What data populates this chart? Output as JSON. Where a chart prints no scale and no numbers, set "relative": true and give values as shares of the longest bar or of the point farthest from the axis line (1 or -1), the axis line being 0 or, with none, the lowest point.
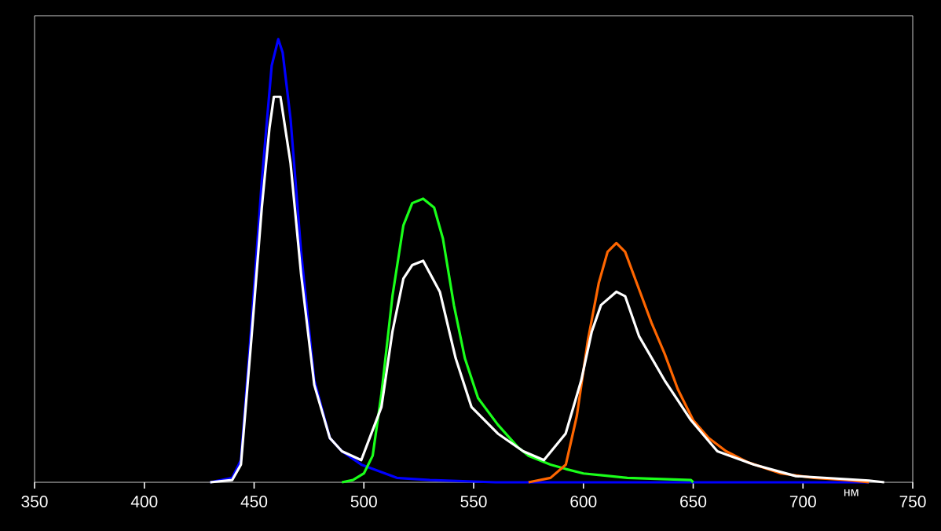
{
  "chart_data": {
    "type": "line",
    "relative": true,
    "xlabel": "нм",
    "xlim": [
      350,
      750
    ],
    "xticks": [
      350,
      400,
      450,
      500,
      550,
      600,
      650,
      700,
      750
    ],
    "marker": "none",
    "line_style": "solid",
    "series": [
      {
        "color": "#0000ff",
        "x": [
          430,
          440,
          444,
          448.7,
          453.5,
          458,
          461,
          463,
          466.6,
          471.4,
          477.4,
          484.5,
          490,
          498.8,
          515,
          530,
          560,
          650,
          730
        ],
        "values": [
          0,
          0.01,
          0.05,
          0.35,
          0.68,
          0.94,
          1.0,
          0.97,
          0.82,
          0.52,
          0.23,
          0.1,
          0.07,
          0.04,
          0.01,
          0.005,
          0,
          0,
          0
        ]
      },
      {
        "color": "#1aff1a",
        "x": [
          490,
          495,
          500,
          504,
          508,
          513,
          518,
          522,
          527,
          532,
          536,
          541,
          546,
          552,
          561,
          570,
          575,
          585,
          592,
          600,
          620,
          649,
          650
        ],
        "values": [
          0,
          0.005,
          0.02,
          0.06,
          0.2,
          0.42,
          0.58,
          0.63,
          0.64,
          0.62,
          0.55,
          0.4,
          0.28,
          0.19,
          0.13,
          0.08,
          0.06,
          0.04,
          0.03,
          0.02,
          0.01,
          0.005,
          0
        ]
      },
      {
        "color": "#ff6600",
        "x": [
          575,
          585,
          592,
          597,
          602,
          607,
          611,
          615,
          619,
          625,
          631,
          637,
          643,
          650,
          657,
          665,
          675,
          690,
          705,
          720,
          730
        ],
        "values": [
          0,
          0.01,
          0.04,
          0.15,
          0.32,
          0.45,
          0.52,
          0.54,
          0.52,
          0.44,
          0.36,
          0.29,
          0.21,
          0.14,
          0.1,
          0.07,
          0.045,
          0.02,
          0.01,
          0.005,
          0
        ]
      },
      {
        "color": "#ffffff",
        "x": [
          430,
          440,
          444,
          448.7,
          453.5,
          457,
          459,
          462,
          466.6,
          471.4,
          477.4,
          484.5,
          490,
          498.8,
          508,
          513,
          518,
          522,
          527,
          534.6,
          541.8,
          549,
          561,
          572.6,
          582,
          591.9,
          599,
          603.8,
          608,
          615,
          619,
          625.3,
          637,
          649,
          661,
          677.7,
          696.8,
          730,
          737
        ],
        "values": [
          0,
          0.005,
          0.04,
          0.32,
          0.62,
          0.8,
          0.87,
          0.87,
          0.72,
          0.47,
          0.22,
          0.1,
          0.07,
          0.05,
          0.17,
          0.34,
          0.46,
          0.49,
          0.5,
          0.43,
          0.28,
          0.17,
          0.11,
          0.07,
          0.05,
          0.11,
          0.23,
          0.34,
          0.4,
          0.43,
          0.42,
          0.33,
          0.23,
          0.14,
          0.07,
          0.04,
          0.014,
          0.004,
          0
        ]
      }
    ]
  }
}
